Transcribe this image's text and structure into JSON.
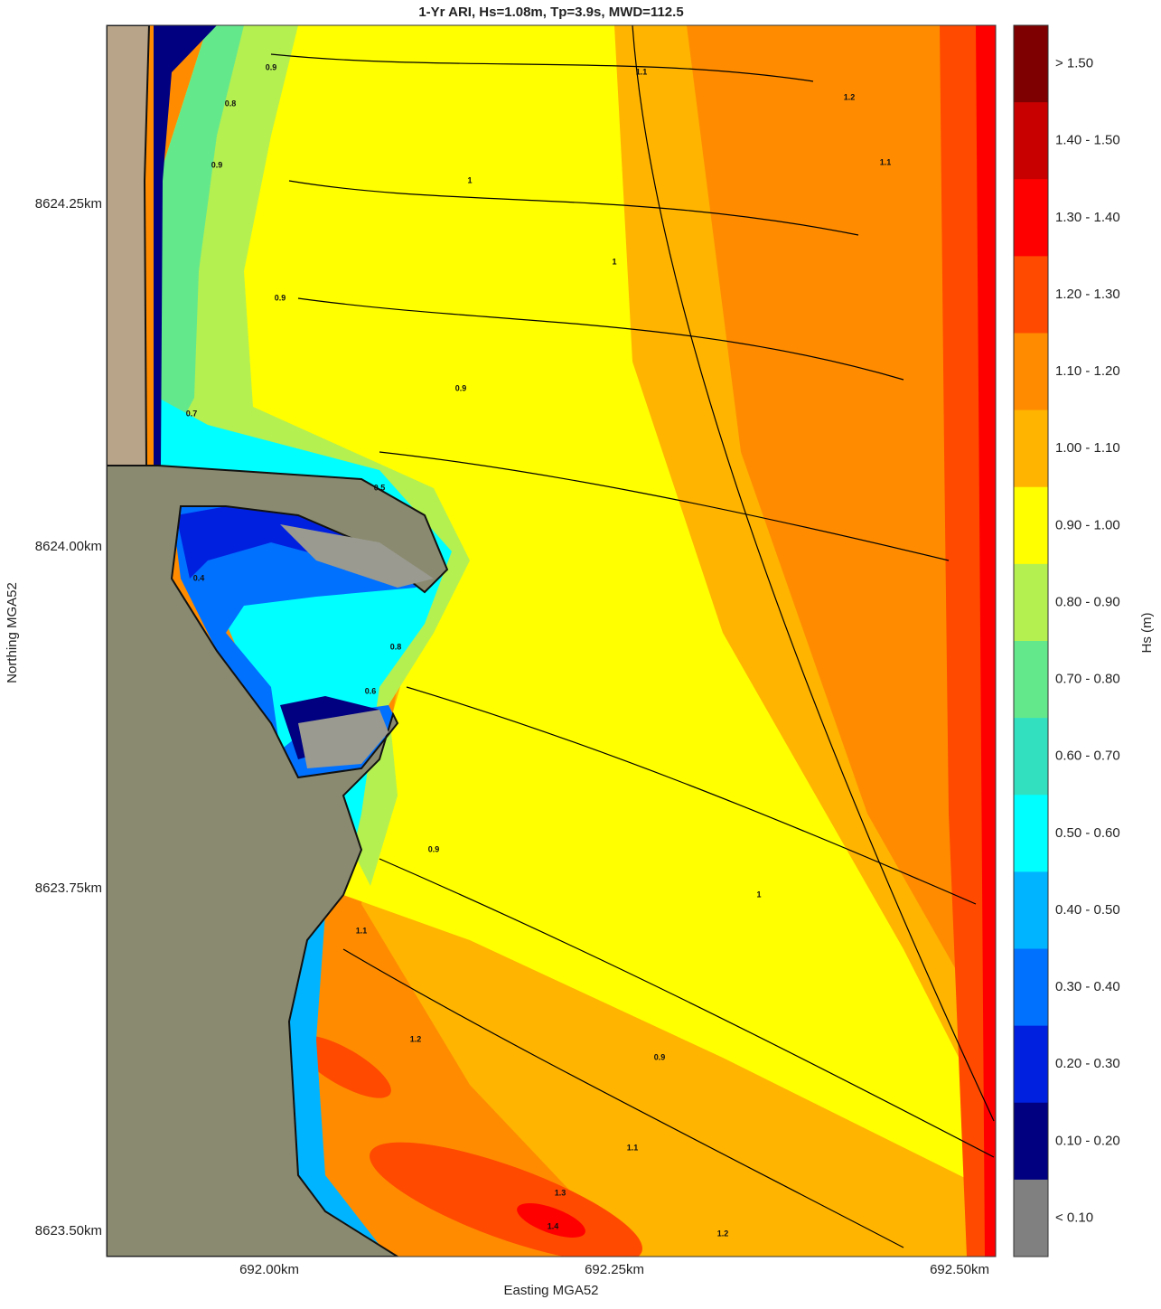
{
  "title": "1-Yr ARI, Hs=1.08m, Tp=3.9s, MWD=112.5",
  "x_axis": {
    "label": "Easting MGA52",
    "ticks": [
      "692.00km",
      "692.25km",
      "692.50km"
    ]
  },
  "y_axis": {
    "label": "Northing MGA52",
    "ticks": [
      "8624.25km",
      "8624.00km",
      "8623.75km",
      "8623.50km"
    ]
  },
  "colorbar": {
    "label": "Hs (m)",
    "classes": [
      {
        "label": "> 1.50",
        "color": "#7f0000"
      },
      {
        "label": "1.40 - 1.50",
        "color": "#c80000"
      },
      {
        "label": "1.30 - 1.40",
        "color": "#ff0000"
      },
      {
        "label": "1.20 - 1.30",
        "color": "#ff4a00"
      },
      {
        "label": "1.10 - 1.20",
        "color": "#ff8c00"
      },
      {
        "label": "1.00 - 1.10",
        "color": "#ffb400"
      },
      {
        "label": "0.90 - 1.00",
        "color": "#ffff00"
      },
      {
        "label": "0.80 - 0.90",
        "color": "#b4f050"
      },
      {
        "label": "0.70 - 0.80",
        "color": "#64e88c"
      },
      {
        "label": "0.60 - 0.70",
        "color": "#32e0c0"
      },
      {
        "label": "0.50 - 0.60",
        "color": "#00ffff"
      },
      {
        "label": "0.40 - 0.50",
        "color": "#00b4ff"
      },
      {
        "label": "0.30 - 0.40",
        "color": "#0070ff"
      },
      {
        "label": "0.20 - 0.30",
        "color": "#0020e0"
      },
      {
        "label": "0.10 - 0.20",
        "color": "#000080"
      },
      {
        "label": "< 0.10",
        "color": "#808080"
      }
    ]
  },
  "contour_labels": [
    "0.9",
    "0.9",
    "0.8",
    "0.9",
    "1",
    "1",
    "1.1",
    "1.1",
    "1.2",
    "0.9",
    "0.7",
    "0.5",
    "0.4",
    "0.8",
    "0.6",
    "0.9",
    "1.1",
    "1.2",
    "1.3",
    "1.4",
    "1.1",
    "1.2",
    "0.9",
    "1"
  ]
}
